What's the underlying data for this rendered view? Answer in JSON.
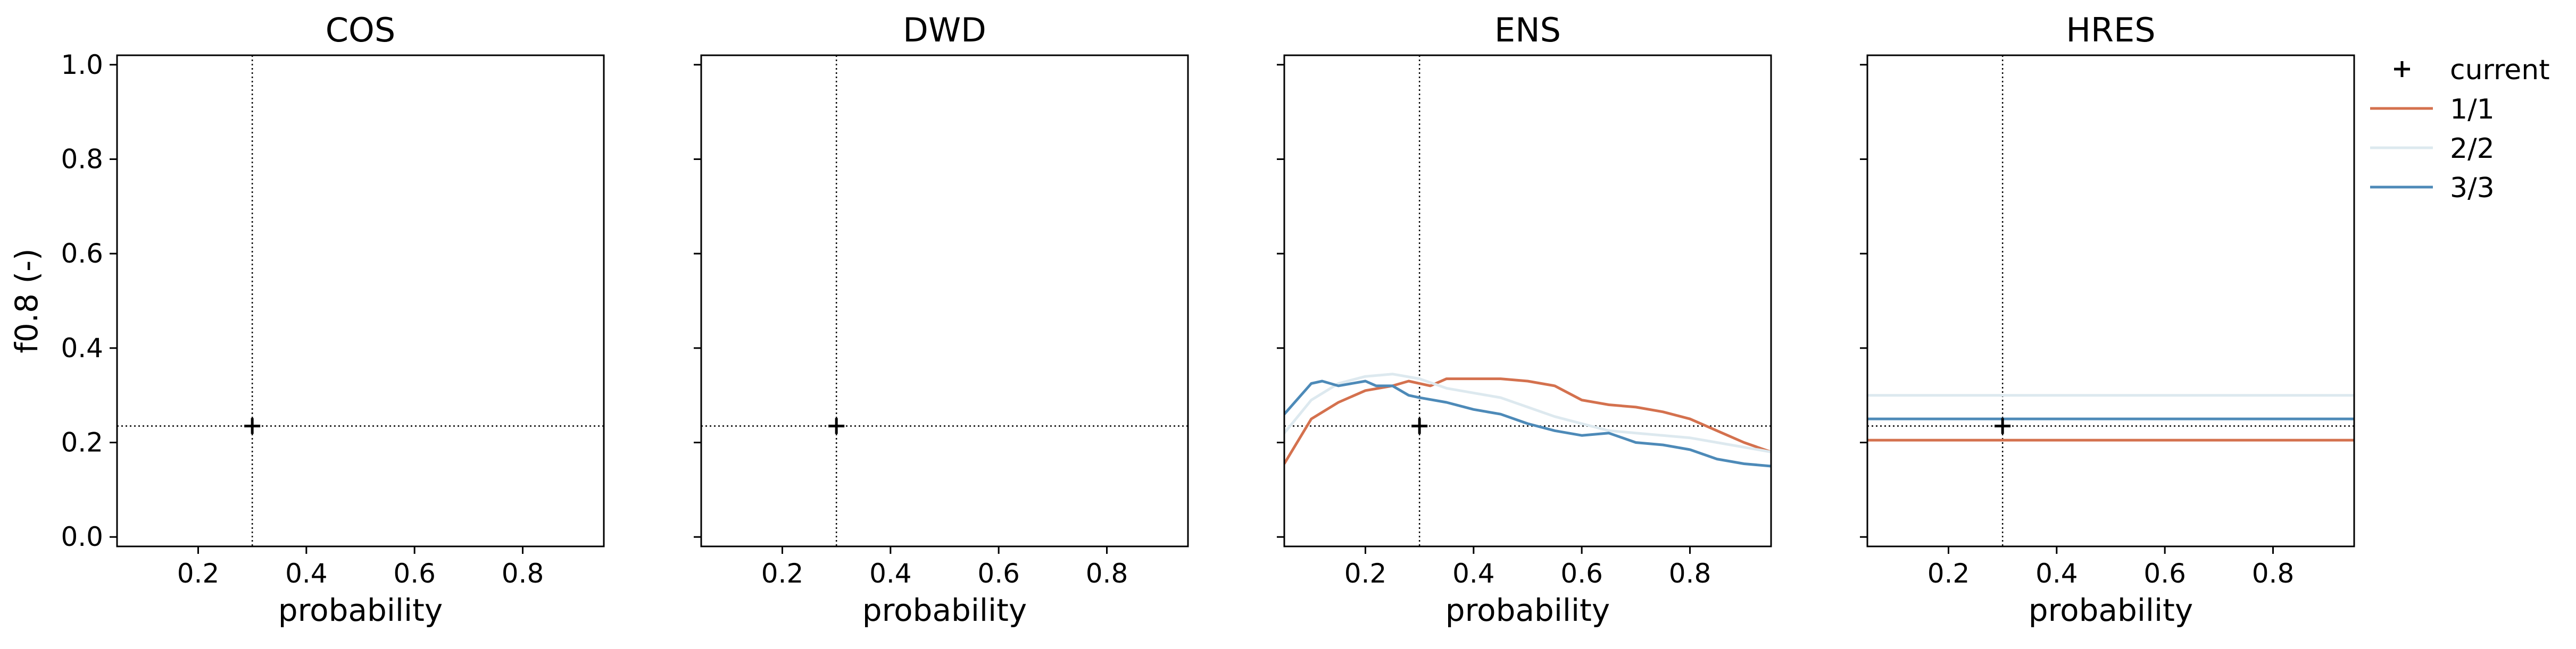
{
  "chart_data": {
    "type": "line",
    "ylabel": "f0.8 (-)",
    "xlabel": "probability",
    "xlim": [
      0.05,
      0.95
    ],
    "ylim": [
      -0.02,
      1.02
    ],
    "xticks": [
      0.2,
      0.4,
      0.6,
      0.8
    ],
    "xtick_labels": [
      "0.2",
      "0.4",
      "0.6",
      "0.8"
    ],
    "yticks": [
      0.0,
      0.2,
      0.4,
      0.6,
      0.8,
      1.0
    ],
    "ytick_labels": [
      "0.0",
      "0.2",
      "0.4",
      "0.6",
      "0.8",
      "1.0"
    ],
    "reference": {
      "x": 0.3,
      "y": 0.235
    },
    "legend": {
      "placement": "outside-right-top",
      "entries": [
        {
          "label": "current",
          "kind": "marker",
          "color": "#000000"
        },
        {
          "label": "1/1",
          "kind": "line",
          "color": "#d4714e"
        },
        {
          "label": "2/2",
          "kind": "line",
          "color": "#dde9ef"
        },
        {
          "label": "3/3",
          "kind": "line",
          "color": "#4d8ab8"
        }
      ]
    },
    "panels": [
      {
        "title": "COS",
        "current": {
          "x": 0.3,
          "y": 0.235
        },
        "series": []
      },
      {
        "title": "DWD",
        "current": {
          "x": 0.3,
          "y": 0.235
        },
        "series": []
      },
      {
        "title": "ENS",
        "current": {
          "x": 0.3,
          "y": 0.235
        },
        "series": [
          {
            "name": "1/1",
            "color": "#d4714e",
            "x": [
              0.05,
              0.1,
              0.15,
              0.2,
              0.25,
              0.28,
              0.32,
              0.35,
              0.4,
              0.45,
              0.5,
              0.55,
              0.6,
              0.65,
              0.7,
              0.75,
              0.8,
              0.85,
              0.9,
              0.95
            ],
            "y": [
              0.155,
              0.25,
              0.285,
              0.31,
              0.32,
              0.33,
              0.32,
              0.335,
              0.335,
              0.335,
              0.33,
              0.32,
              0.29,
              0.28,
              0.275,
              0.265,
              0.25,
              0.225,
              0.2,
              0.18
            ]
          },
          {
            "name": "2/2",
            "color": "#dde9ef",
            "x": [
              0.05,
              0.1,
              0.15,
              0.2,
              0.25,
              0.3,
              0.35,
              0.4,
              0.45,
              0.5,
              0.55,
              0.6,
              0.65,
              0.7,
              0.75,
              0.8,
              0.85,
              0.9,
              0.95
            ],
            "y": [
              0.22,
              0.29,
              0.325,
              0.34,
              0.345,
              0.335,
              0.315,
              0.305,
              0.295,
              0.275,
              0.255,
              0.24,
              0.225,
              0.22,
              0.215,
              0.21,
              0.2,
              0.19,
              0.18
            ]
          },
          {
            "name": "3/3",
            "color": "#4d8ab8",
            "x": [
              0.05,
              0.1,
              0.12,
              0.15,
              0.2,
              0.22,
              0.25,
              0.28,
              0.3,
              0.35,
              0.4,
              0.45,
              0.5,
              0.55,
              0.6,
              0.65,
              0.7,
              0.75,
              0.8,
              0.85,
              0.9,
              0.95
            ],
            "y": [
              0.26,
              0.325,
              0.33,
              0.32,
              0.33,
              0.32,
              0.32,
              0.3,
              0.295,
              0.285,
              0.27,
              0.26,
              0.24,
              0.225,
              0.215,
              0.22,
              0.2,
              0.195,
              0.185,
              0.165,
              0.155,
              0.15
            ]
          }
        ]
      },
      {
        "title": "HRES",
        "current": {
          "x": 0.3,
          "y": 0.235
        },
        "series": [
          {
            "name": "1/1",
            "color": "#d4714e",
            "x": [
              0.05,
              0.95
            ],
            "y": [
              0.205,
              0.205
            ]
          },
          {
            "name": "2/2",
            "color": "#dde9ef",
            "x": [
              0.05,
              0.95
            ],
            "y": [
              0.3,
              0.3
            ]
          },
          {
            "name": "3/3",
            "color": "#4d8ab8",
            "x": [
              0.05,
              0.95
            ],
            "y": [
              0.25,
              0.25
            ]
          }
        ]
      }
    ]
  }
}
